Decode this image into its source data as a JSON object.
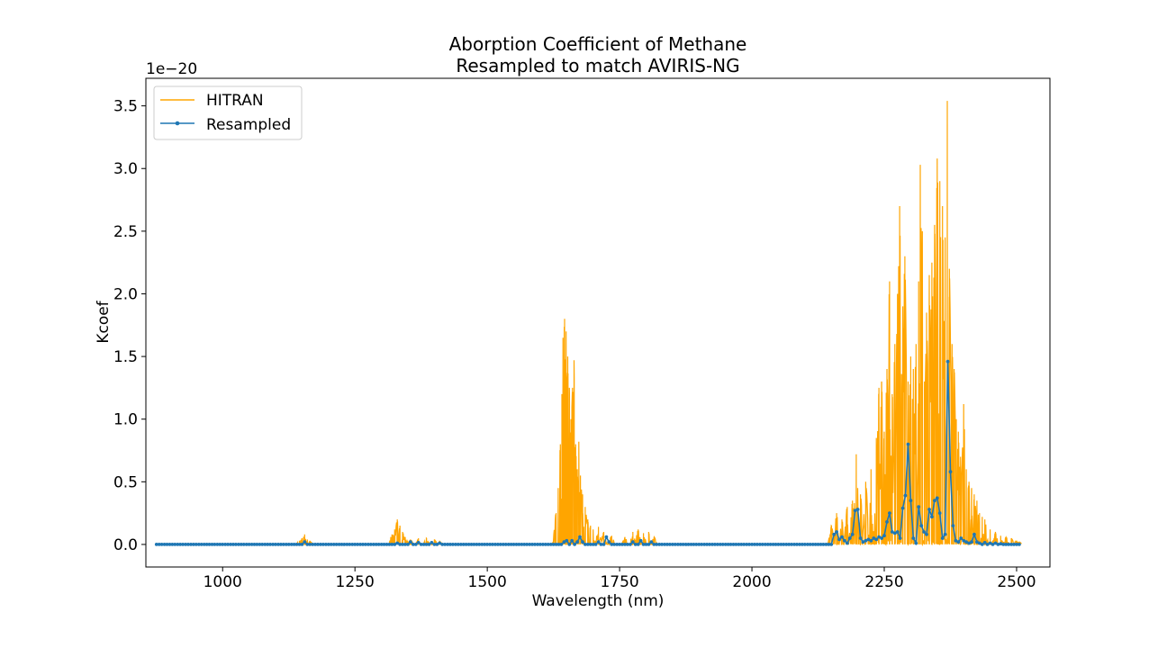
{
  "chart_data": {
    "type": "line",
    "title_line1": "Aborption Coefficient of Methane",
    "title_line2": "Resampled to match AVIRIS-NG",
    "xlabel": "Wavelength (nm)",
    "ylabel": "Kcoef",
    "y_multiplier": "1e−20",
    "xlim": [
      855,
      2563
    ],
    "ylim": [
      -0.18,
      3.72
    ],
    "x_ticks": [
      1000,
      1250,
      1500,
      1750,
      2000,
      2250,
      2500
    ],
    "x_tick_labels": [
      "1000",
      "1250",
      "1500",
      "1750",
      "2000",
      "2250",
      "2500"
    ],
    "y_ticks": [
      0.0,
      0.5,
      1.0,
      1.5,
      2.0,
      2.5,
      3.0,
      3.5
    ],
    "y_tick_labels": [
      "0.0",
      "0.5",
      "1.0",
      "1.5",
      "2.0",
      "2.5",
      "3.0",
      "3.5"
    ],
    "grid": false,
    "legend_position": "top-left",
    "series": [
      {
        "name": "HITRAN",
        "color": "#ffa500",
        "style": "line",
        "x_range": [
          875,
          2510
        ],
        "peaks": [
          [
            1145,
            0.03
          ],
          [
            1150,
            0.05
          ],
          [
            1155,
            0.08
          ],
          [
            1160,
            0.04
          ],
          [
            1165,
            0.03
          ],
          [
            1320,
            0.08
          ],
          [
            1325,
            0.12
          ],
          [
            1330,
            0.2
          ],
          [
            1335,
            0.15
          ],
          [
            1340,
            0.1
          ],
          [
            1345,
            0.06
          ],
          [
            1355,
            0.04
          ],
          [
            1370,
            0.05
          ],
          [
            1385,
            0.05
          ],
          [
            1400,
            0.04
          ],
          [
            1410,
            0.03
          ],
          [
            1630,
            0.25
          ],
          [
            1634,
            0.45
          ],
          [
            1638,
            0.8
          ],
          [
            1641,
            1.2
          ],
          [
            1643,
            1.65
          ],
          [
            1646,
            1.8
          ],
          [
            1649,
            1.7
          ],
          [
            1652,
            1.5
          ],
          [
            1655,
            1.25
          ],
          [
            1658,
            1.0
          ],
          [
            1661,
            1.25
          ],
          [
            1664,
            1.47
          ],
          [
            1667,
            0.8
          ],
          [
            1670,
            0.6
          ],
          [
            1673,
            0.82
          ],
          [
            1676,
            0.55
          ],
          [
            1680,
            0.4
          ],
          [
            1685,
            0.3
          ],
          [
            1690,
            0.2
          ],
          [
            1695,
            0.15
          ],
          [
            1700,
            0.12
          ],
          [
            1710,
            0.14
          ],
          [
            1720,
            0.1
          ],
          [
            1735,
            0.07
          ],
          [
            1760,
            0.06
          ],
          [
            1775,
            0.1
          ],
          [
            1785,
            0.12
          ],
          [
            1795,
            0.09
          ],
          [
            1805,
            0.1
          ],
          [
            1815,
            0.06
          ],
          [
            2150,
            0.15
          ],
          [
            2160,
            0.25
          ],
          [
            2170,
            0.2
          ],
          [
            2180,
            0.3
          ],
          [
            2190,
            0.35
          ],
          [
            2197,
            0.72
          ],
          [
            2205,
            0.4
          ],
          [
            2215,
            0.5
          ],
          [
            2225,
            0.6
          ],
          [
            2235,
            0.85
          ],
          [
            2240,
            1.25
          ],
          [
            2245,
            1.3
          ],
          [
            2250,
            0.9
          ],
          [
            2255,
            1.4
          ],
          [
            2260,
            2.1
          ],
          [
            2265,
            1.2
          ],
          [
            2270,
            1.6
          ],
          [
            2275,
            2.0
          ],
          [
            2279,
            2.7
          ],
          [
            2285,
            1.9
          ],
          [
            2289,
            2.3
          ],
          [
            2295,
            1.3
          ],
          [
            2300,
            1.5
          ],
          [
            2305,
            1.4
          ],
          [
            2310,
            1.6
          ],
          [
            2315,
            2.1
          ],
          [
            2318,
            3.03
          ],
          [
            2322,
            2.5
          ],
          [
            2326,
            1.3
          ],
          [
            2330,
            1.85
          ],
          [
            2335,
            2.15
          ],
          [
            2340,
            2.25
          ],
          [
            2345,
            2.55
          ],
          [
            2350,
            3.08
          ],
          [
            2355,
            2.9
          ],
          [
            2360,
            2.7
          ],
          [
            2365,
            2.45
          ],
          [
            2369,
            3.54
          ],
          [
            2373,
            2.2
          ],
          [
            2378,
            1.6
          ],
          [
            2382,
            1.4
          ],
          [
            2386,
            1.0
          ],
          [
            2390,
            0.9
          ],
          [
            2394,
            0.7
          ],
          [
            2400,
            1.12
          ],
          [
            2405,
            0.6
          ],
          [
            2410,
            0.5
          ],
          [
            2415,
            0.45
          ],
          [
            2420,
            0.4
          ],
          [
            2425,
            0.35
          ],
          [
            2430,
            0.25
          ],
          [
            2435,
            0.22
          ],
          [
            2440,
            0.2
          ],
          [
            2450,
            0.12
          ],
          [
            2460,
            0.1
          ],
          [
            2470,
            0.07
          ],
          [
            2480,
            0.06
          ],
          [
            2490,
            0.05
          ],
          [
            2500,
            0.03
          ],
          [
            2505,
            0.02
          ]
        ]
      },
      {
        "name": "Resampled",
        "color": "#1f77b4",
        "style": "line+markers",
        "x_range": [
          875,
          2505
        ],
        "step_nm": 5,
        "features": [
          [
            1155,
            0.02
          ],
          [
            1330,
            0.01
          ],
          [
            1355,
            0.02
          ],
          [
            1370,
            0.015
          ],
          [
            1395,
            0.015
          ],
          [
            1410,
            0.01
          ],
          [
            1645,
            0.02
          ],
          [
            1650,
            0.03
          ],
          [
            1660,
            0.03
          ],
          [
            1670,
            0.02
          ],
          [
            1675,
            0.06
          ],
          [
            1680,
            0.02
          ],
          [
            1710,
            0.02
          ],
          [
            1725,
            0.06
          ],
          [
            1730,
            0.02
          ],
          [
            1775,
            0.02
          ],
          [
            1790,
            0.03
          ],
          [
            1810,
            0.02
          ],
          [
            2155,
            0.08
          ],
          [
            2160,
            0.1
          ],
          [
            2165,
            0.04
          ],
          [
            2170,
            0.06
          ],
          [
            2175,
            0.03
          ],
          [
            2180,
            0.01
          ],
          [
            2185,
            0.05
          ],
          [
            2190,
            0.08
          ],
          [
            2195,
            0.27
          ],
          [
            2200,
            0.28
          ],
          [
            2205,
            0.05
          ],
          [
            2210,
            0.02
          ],
          [
            2215,
            0.03
          ],
          [
            2220,
            0.04
          ],
          [
            2225,
            0.03
          ],
          [
            2230,
            0.05
          ],
          [
            2235,
            0.04
          ],
          [
            2240,
            0.06
          ],
          [
            2245,
            0.05
          ],
          [
            2250,
            0.07
          ],
          [
            2255,
            0.18
          ],
          [
            2260,
            0.25
          ],
          [
            2265,
            0.1
          ],
          [
            2270,
            0.09
          ],
          [
            2275,
            0.1
          ],
          [
            2280,
            0.05
          ],
          [
            2285,
            0.29
          ],
          [
            2290,
            0.39
          ],
          [
            2295,
            0.8
          ],
          [
            2300,
            0.35
          ],
          [
            2305,
            0.05
          ],
          [
            2310,
            0.01
          ],
          [
            2315,
            0.3
          ],
          [
            2320,
            0.15
          ],
          [
            2325,
            0.1
          ],
          [
            2330,
            0.08
          ],
          [
            2335,
            0.28
          ],
          [
            2340,
            0.22
          ],
          [
            2345,
            0.35
          ],
          [
            2350,
            0.37
          ],
          [
            2355,
            0.25
          ],
          [
            2360,
            0.05
          ],
          [
            2365,
            0.08
          ],
          [
            2370,
            1.46
          ],
          [
            2375,
            0.58
          ],
          [
            2380,
            0.15
          ],
          [
            2385,
            0.03
          ],
          [
            2390,
            0.02
          ],
          [
            2395,
            0.05
          ],
          [
            2400,
            0.03
          ],
          [
            2405,
            0.02
          ],
          [
            2410,
            0.01
          ],
          [
            2415,
            0.02
          ],
          [
            2420,
            0.08
          ],
          [
            2425,
            0.02
          ],
          [
            2430,
            0.01
          ],
          [
            2440,
            0.015
          ],
          [
            2450,
            0.01
          ],
          [
            2460,
            0.01
          ],
          [
            2470,
            0.005
          ]
        ]
      }
    ]
  }
}
